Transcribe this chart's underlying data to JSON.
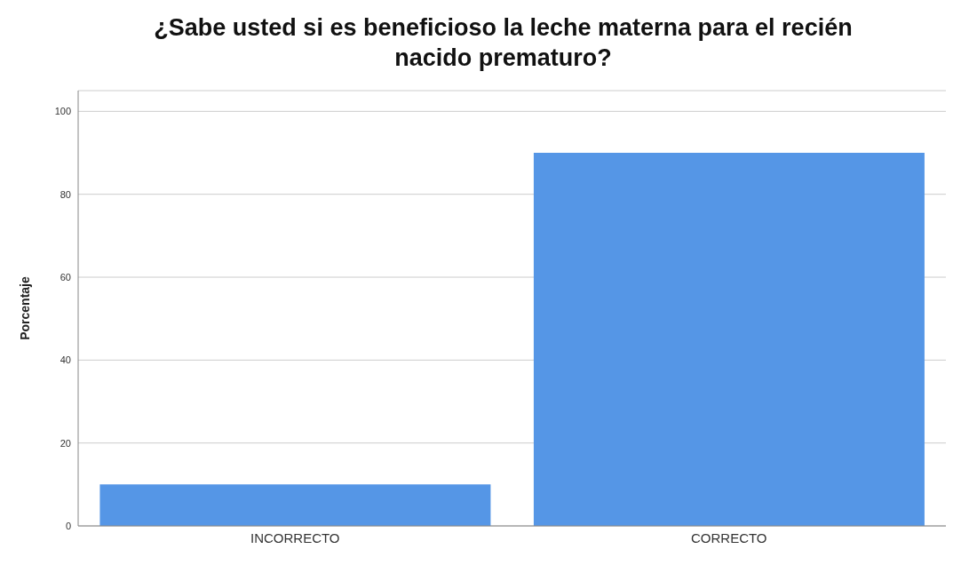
{
  "chart_data": {
    "type": "bar",
    "title": "¿Sabe usted si es beneficioso la leche materna para el recién nacido prematuro?",
    "ylabel": "Porcentaje",
    "categories": [
      "INCORRECTO",
      "CORRECTO"
    ],
    "values": [
      10,
      90
    ],
    "color": "#5596e6",
    "ylim": [
      0,
      105
    ],
    "yticks": [
      0,
      20,
      40,
      60,
      80,
      100
    ],
    "grid": "y"
  }
}
